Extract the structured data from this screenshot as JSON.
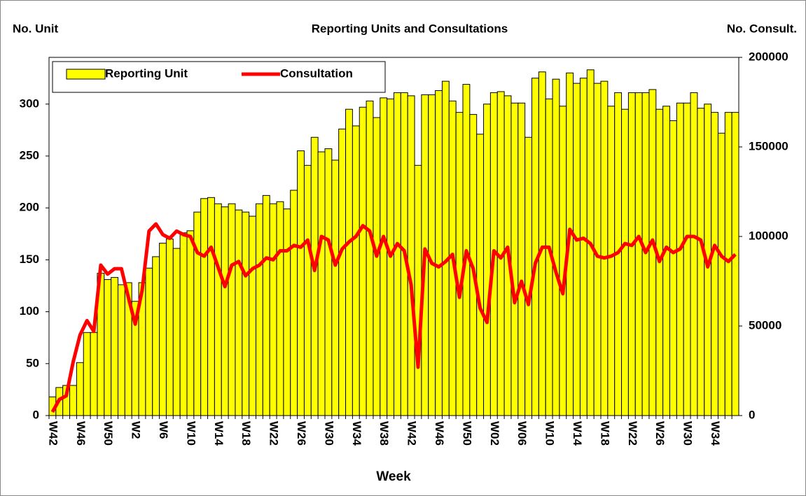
{
  "chart_data": {
    "type": "bar_line",
    "title": "Reporting Units and Consultations",
    "y_label": "No. Unit",
    "y2_label": "No. Consult.",
    "x_label": "Week",
    "categories": [
      "W42",
      null,
      null,
      null,
      "W46",
      null,
      null,
      null,
      "W50",
      null,
      null,
      null,
      "W2",
      null,
      null,
      null,
      "W6",
      null,
      null,
      null,
      "W10",
      null,
      null,
      null,
      "W14",
      null,
      null,
      null,
      "W18",
      null,
      null,
      null,
      "W22",
      null,
      null,
      null,
      "W26",
      null,
      null,
      null,
      "W30",
      null,
      null,
      null,
      "W34",
      null,
      null,
      null,
      "W38",
      null,
      null,
      null,
      "W42",
      null,
      null,
      null,
      "W46",
      null,
      null,
      null,
      "W50",
      null,
      null,
      null,
      "W02",
      null,
      null,
      null,
      "W06",
      null,
      null,
      null,
      "W10",
      null,
      null,
      null,
      "W14",
      null,
      null,
      null,
      "W18",
      null,
      null,
      null,
      "W22",
      null,
      null,
      null,
      "W26",
      null,
      null,
      null,
      "W30",
      null,
      null,
      null,
      "W34",
      null,
      null,
      null
    ],
    "series": [
      {
        "name": "Reporting Unit",
        "color": "#ffff00",
        "values": [
          18,
          27,
          29,
          29,
          51,
          80,
          80,
          137,
          131,
          133,
          126,
          128,
          110,
          128,
          142,
          153,
          166,
          170,
          161,
          176,
          178,
          196,
          209,
          210,
          204,
          201,
          204,
          198,
          196,
          192,
          204,
          212,
          204,
          206,
          199,
          217,
          255,
          241,
          268,
          254,
          257,
          246,
          276,
          295,
          279,
          297,
          303,
          287,
          306,
          305,
          311,
          311,
          308,
          241,
          309,
          309,
          313,
          322,
          303,
          292,
          319,
          290,
          271,
          300,
          311,
          312,
          308,
          301,
          301,
          268,
          325,
          331,
          305,
          324,
          298,
          330,
          320,
          325,
          333,
          320,
          322,
          298,
          311,
          295,
          311,
          311,
          311,
          314,
          295,
          298,
          284,
          301,
          301,
          311,
          296,
          300,
          292,
          272,
          292,
          292
        ]
      },
      {
        "name": "Consultation",
        "color": "#ff0000",
        "axis": "y2",
        "values": [
          2000,
          9000,
          11000,
          30000,
          45000,
          53000,
          47000,
          84000,
          79000,
          82000,
          82000,
          66000,
          51000,
          70000,
          103000,
          107000,
          101000,
          99000,
          103000,
          101000,
          100000,
          91000,
          89000,
          94000,
          83000,
          72000,
          84000,
          86000,
          78000,
          82000,
          84000,
          88000,
          87000,
          92000,
          92000,
          95000,
          94000,
          98000,
          81000,
          100000,
          98000,
          84000,
          93000,
          97000,
          100000,
          106000,
          103000,
          89000,
          100000,
          89000,
          96000,
          92000,
          73000,
          27000,
          93000,
          85000,
          83000,
          86000,
          90000,
          66000,
          92000,
          82000,
          60000,
          52000,
          92000,
          88000,
          94000,
          63000,
          75000,
          62000,
          85000,
          94000,
          94000,
          80000,
          68000,
          104000,
          98000,
          99000,
          96000,
          89000,
          88000,
          89000,
          91000,
          96000,
          95000,
          100000,
          91000,
          98000,
          86000,
          94000,
          91000,
          93000,
          100000,
          100000,
          98000,
          83000,
          95000,
          89000,
          86000,
          90000
        ]
      }
    ],
    "ylim": [
      0,
      345
    ],
    "yticks": [
      0,
      50,
      100,
      150,
      200,
      250,
      300
    ],
    "y2lim": [
      0,
      200000
    ],
    "y2ticks": [
      0,
      50000,
      100000,
      150000,
      200000
    ],
    "legend": "upper left"
  }
}
